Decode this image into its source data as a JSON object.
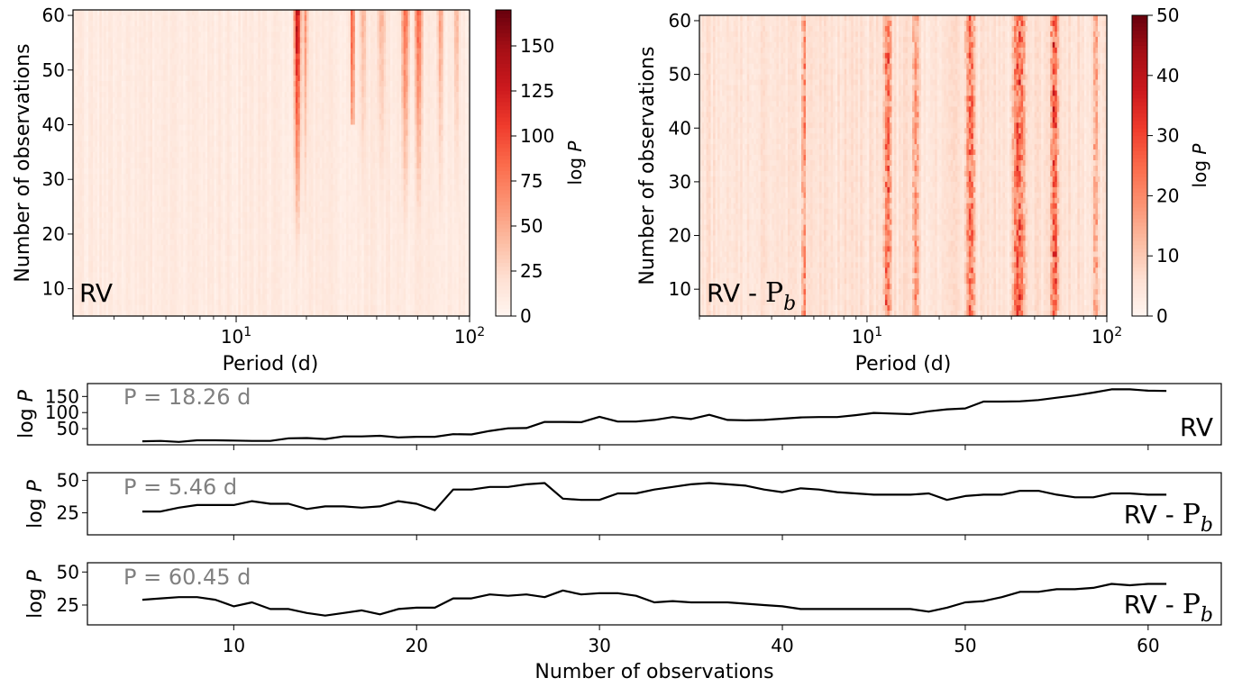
{
  "chart_data": [
    {
      "type": "heatmap",
      "panel_label": "RV",
      "xlabel": "Period (d)",
      "ylabel": "Number of observations",
      "x_scale": "log",
      "xlim": [
        2,
        100
      ],
      "ylim": [
        5,
        61
      ],
      "x_ticks": [
        {
          "value": 10,
          "base": "10",
          "exp": "1"
        },
        {
          "value": 100,
          "base": "10",
          "exp": "2"
        }
      ],
      "y_ticks": [
        10,
        20,
        30,
        40,
        50,
        60
      ],
      "colorbar": {
        "label": "log P",
        "colormap": "Reds",
        "min": 0,
        "max": 170,
        "ticks": [
          0,
          25,
          50,
          75,
          100,
          125,
          150
        ]
      },
      "peaks": [
        {
          "period": 18.3,
          "peak": 170,
          "width": 0.01,
          "nmin": 7
        },
        {
          "period": 19.8,
          "peak": 75,
          "width": 0.008,
          "nmin": 20
        },
        {
          "period": 31.5,
          "peak": 120,
          "width": 0.007,
          "nmin": 40
        },
        {
          "period": 35,
          "peak": 55,
          "width": 0.012,
          "nmin": 20
        },
        {
          "period": 42,
          "peak": 55,
          "width": 0.015,
          "nmin": 15
        },
        {
          "period": 53,
          "peak": 100,
          "width": 0.012,
          "nmin": 10
        },
        {
          "period": 60.5,
          "peak": 110,
          "width": 0.012,
          "nmin": 10
        },
        {
          "period": 75,
          "peak": 70,
          "width": 0.01,
          "nmin": 20
        },
        {
          "period": 88,
          "peak": 55,
          "width": 0.01,
          "nmin": 20
        }
      ]
    },
    {
      "type": "heatmap",
      "panel_label": "RV - ",
      "panel_label_symbol": "P",
      "panel_label_sub": "b",
      "xlabel": "Period (d)",
      "ylabel": "Number of observations",
      "x_scale": "log",
      "xlim": [
        2,
        100
      ],
      "ylim": [
        5,
        61
      ],
      "x_ticks": [
        {
          "value": 10,
          "base": "10",
          "exp": "1"
        },
        {
          "value": 100,
          "base": "10",
          "exp": "2"
        }
      ],
      "y_ticks": [
        10,
        20,
        30,
        40,
        50,
        60
      ],
      "colorbar": {
        "label": "log P",
        "colormap": "Reds",
        "min": 0,
        "max": 50,
        "ticks": [
          0,
          10,
          20,
          30,
          40,
          50
        ]
      },
      "peaks": [
        {
          "period": 5.46,
          "peak": 35,
          "width": 0.006,
          "nmin": 5
        },
        {
          "period": 12.2,
          "peak": 40,
          "width": 0.012,
          "nmin": 5
        },
        {
          "period": 16,
          "peak": 28,
          "width": 0.012,
          "nmin": 5
        },
        {
          "period": 27,
          "peak": 38,
          "width": 0.015,
          "nmin": 5
        },
        {
          "period": 43,
          "peak": 42,
          "width": 0.02,
          "nmin": 5
        },
        {
          "period": 60.45,
          "peak": 44,
          "width": 0.012,
          "nmin": 5
        },
        {
          "period": 90,
          "peak": 25,
          "width": 0.01,
          "nmin": 5
        }
      ]
    },
    {
      "type": "line",
      "annotation": "P = 18.26 d",
      "panel_label": "RV",
      "ylabel": "log P",
      "xlim": [
        2,
        64
      ],
      "ylim": [
        0,
        190
      ],
      "y_ticks": [
        50,
        100,
        150
      ],
      "x": [
        5,
        6,
        7,
        8,
        9,
        10,
        11,
        12,
        13,
        14,
        15,
        16,
        17,
        18,
        19,
        20,
        21,
        22,
        23,
        24,
        25,
        26,
        27,
        28,
        29,
        30,
        31,
        32,
        33,
        34,
        35,
        36,
        37,
        38,
        39,
        40,
        41,
        42,
        43,
        44,
        45,
        46,
        47,
        48,
        49,
        50,
        51,
        52,
        53,
        54,
        55,
        56,
        57,
        58,
        59,
        60,
        61
      ],
      "y": [
        11,
        12,
        9,
        14,
        14,
        13,
        12,
        12,
        20,
        21,
        18,
        26,
        26,
        28,
        23,
        25,
        25,
        33,
        32,
        43,
        51,
        52,
        71,
        71,
        70,
        87,
        72,
        72,
        77,
        86,
        80,
        93,
        77,
        76,
        77,
        81,
        85,
        86,
        86,
        92,
        99,
        97,
        95,
        104,
        110,
        113,
        134,
        134,
        135,
        139,
        146,
        153,
        162,
        172,
        172,
        168,
        167
      ]
    },
    {
      "type": "line",
      "annotation": "P = 5.46 d",
      "panel_label": "RV - ",
      "panel_label_symbol": "P",
      "panel_label_sub": "b",
      "ylabel": "log P",
      "xlim": [
        2,
        64
      ],
      "ylim": [
        8,
        56
      ],
      "y_ticks": [
        25,
        50
      ],
      "x": [
        5,
        6,
        7,
        8,
        9,
        10,
        11,
        12,
        13,
        14,
        15,
        16,
        17,
        18,
        19,
        20,
        21,
        22,
        23,
        24,
        25,
        26,
        27,
        28,
        29,
        30,
        31,
        32,
        33,
        34,
        35,
        36,
        37,
        38,
        39,
        40,
        41,
        42,
        43,
        44,
        45,
        46,
        47,
        48,
        49,
        50,
        51,
        52,
        53,
        54,
        55,
        56,
        57,
        58,
        59,
        60,
        61
      ],
      "y": [
        26,
        26,
        29,
        31,
        31,
        31,
        34,
        32,
        32,
        28,
        30,
        30,
        29,
        30,
        34,
        32,
        27,
        43,
        43,
        45,
        45,
        47,
        48,
        36,
        35,
        35,
        40,
        40,
        43,
        45,
        47,
        48,
        47,
        46,
        43,
        41,
        44,
        43,
        41,
        40,
        39,
        39,
        39,
        40,
        35,
        38,
        39,
        39,
        42,
        42,
        39,
        37,
        37,
        40,
        40,
        39,
        39
      ]
    },
    {
      "type": "line",
      "annotation": "P = 60.45 d",
      "panel_label": "RV - ",
      "panel_label_symbol": "P",
      "panel_label_sub": "b",
      "xlabel": "Number of observations",
      "ylabel": "log P",
      "xlim": [
        2,
        64
      ],
      "ylim": [
        10,
        57
      ],
      "y_ticks": [
        25,
        50
      ],
      "x_ticks": [
        10,
        20,
        30,
        40,
        50,
        60
      ],
      "x": [
        5,
        6,
        7,
        8,
        9,
        10,
        11,
        12,
        13,
        14,
        15,
        16,
        17,
        18,
        19,
        20,
        21,
        22,
        23,
        24,
        25,
        26,
        27,
        28,
        29,
        30,
        31,
        32,
        33,
        34,
        35,
        36,
        37,
        38,
        39,
        40,
        41,
        42,
        43,
        44,
        45,
        46,
        47,
        48,
        49,
        50,
        51,
        52,
        53,
        54,
        55,
        56,
        57,
        58,
        59,
        60,
        61
      ],
      "y": [
        29,
        30,
        31,
        31,
        29,
        24,
        27,
        22,
        22,
        19,
        17,
        19,
        21,
        18,
        22,
        23,
        23,
        30,
        30,
        33,
        32,
        33,
        31,
        36,
        33,
        34,
        34,
        32,
        27,
        28,
        27,
        27,
        27,
        26,
        25,
        24,
        22,
        22,
        22,
        22,
        22,
        22,
        22,
        20,
        23,
        27,
        28,
        31,
        35,
        35,
        37,
        37,
        38,
        41,
        40,
        41,
        41
      ]
    }
  ]
}
